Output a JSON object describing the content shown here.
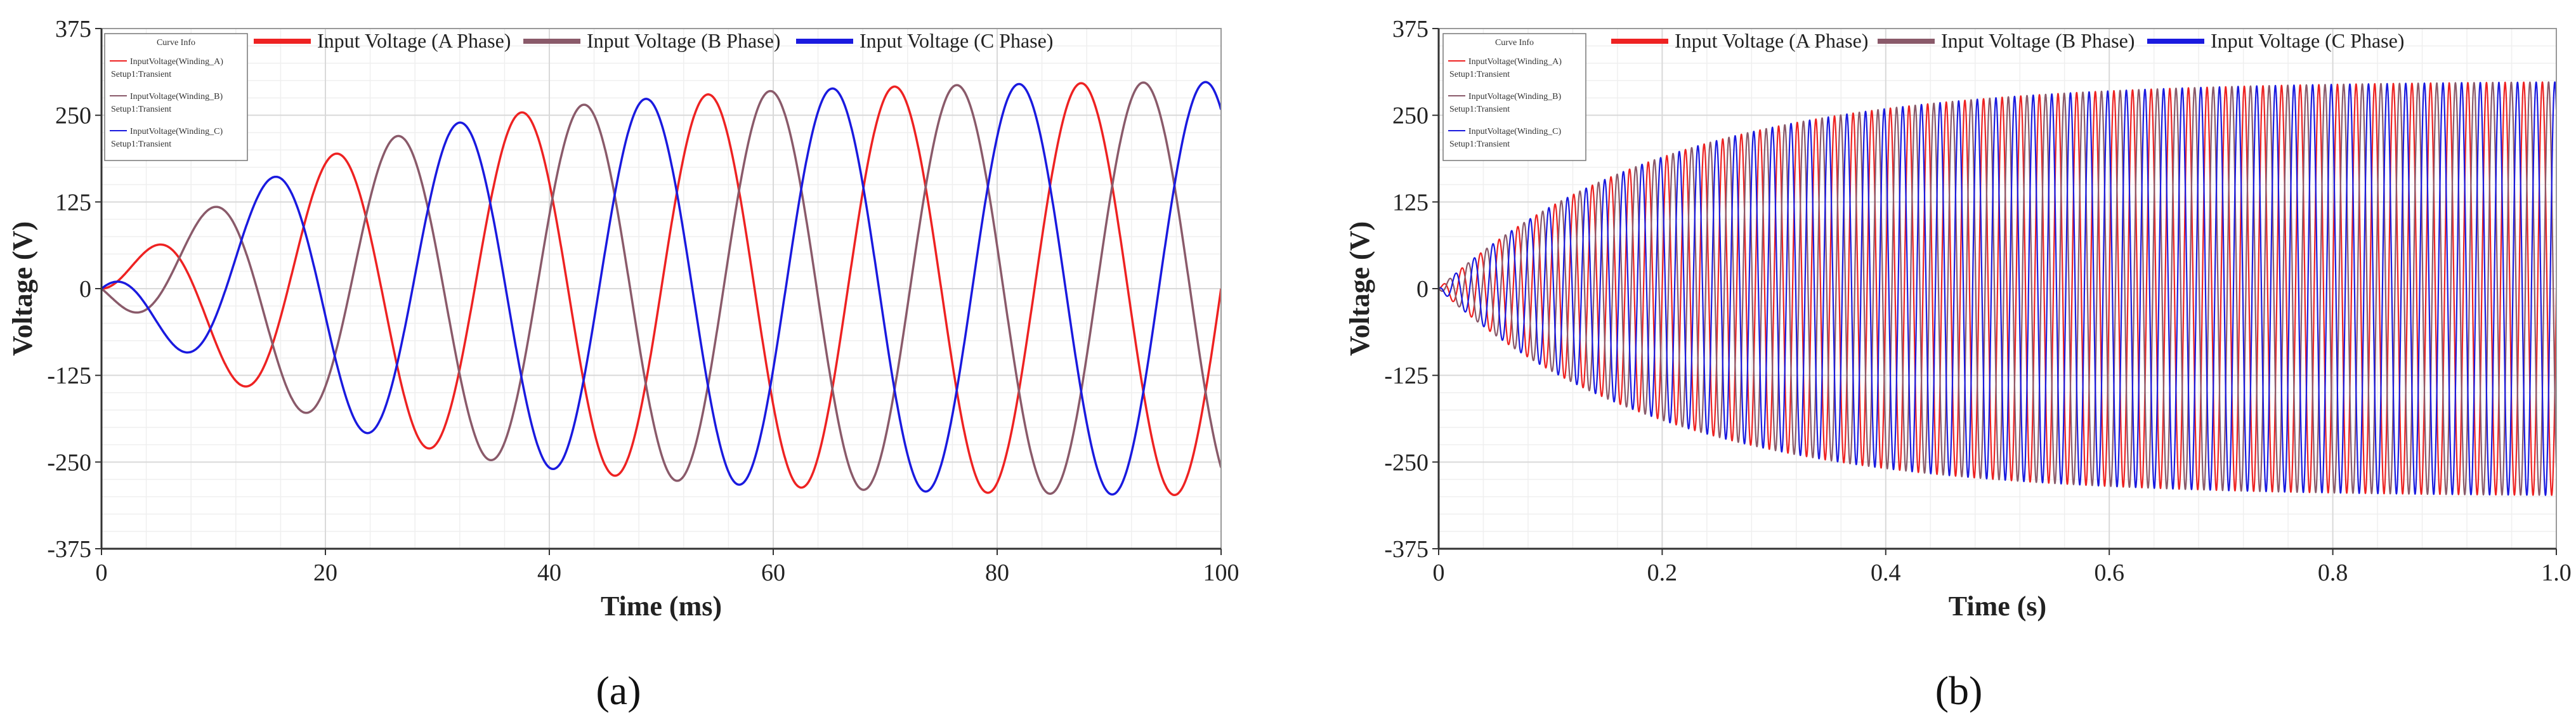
{
  "colors": {
    "phase_a": "#ee2222",
    "phase_b": "#8a5a6a",
    "phase_c": "#1a1adf",
    "grid_major": "#d9d9d9",
    "grid_minor": "#efefef",
    "frame": "#999999"
  },
  "chart_data": [
    {
      "type": "line",
      "panel_label": "(a)",
      "xlabel": "Time (ms)",
      "ylabel": "Voltage (V)",
      "xlim": [
        0,
        100
      ],
      "ylim": [
        -375,
        375
      ],
      "x_ticks": [
        "0",
        "20",
        "40",
        "60",
        "80",
        "100"
      ],
      "y_ticks": [
        "375",
        "250",
        "125",
        "0",
        "-125",
        "-250",
        "-375"
      ],
      "grid": true,
      "legend": [
        "Input Voltage (A Phase)",
        "Input Voltage (B Phase)",
        "Input Voltage (C Phase)"
      ],
      "curve_info": {
        "title": "Curve Info",
        "entries": [
          {
            "line1": "InputVoltage(Winding_A)",
            "line2": "Setup1:Transient"
          },
          {
            "line1": "InputVoltage(Winding_B)",
            "line2": "Setup1:Transient"
          },
          {
            "line1": "InputVoltage(Winding_C)",
            "line2": "Setup1:Transient"
          }
        ]
      },
      "series": [
        {
          "name": "Input Voltage (A Phase)",
          "amplitude_peaks": [
            [
              5,
              60
            ],
            [
              21,
              195
            ],
            [
              38,
              255
            ],
            [
              54,
              280
            ],
            [
              71,
              290
            ],
            [
              88,
              298
            ]
          ]
        },
        {
          "name": "Input Voltage (B Phase)",
          "amplitude_peaks": [
            [
              8,
              -90
            ],
            [
              16,
              160
            ],
            [
              33,
              240
            ],
            [
              49,
              272
            ],
            [
              66,
              288
            ],
            [
              99,
              298
            ]
          ]
        },
        {
          "name": "Input Voltage (C Phase)",
          "amplitude_peaks": [
            [
              10,
              120
            ],
            [
              26,
              220
            ],
            [
              43,
              265
            ],
            [
              60,
              285
            ],
            [
              76,
              292
            ],
            [
              93,
              298
            ]
          ]
        }
      ],
      "frequency_hz": 60,
      "steady_amplitude_v": 300,
      "time_constant_ms": 20
    },
    {
      "type": "line",
      "panel_label": "(b)",
      "xlabel": "Time (s)",
      "ylabel": "Voltage (V)",
      "xlim": [
        0,
        1.0
      ],
      "ylim": [
        -375,
        375
      ],
      "x_ticks": [
        "0",
        "0.2",
        "0.4",
        "0.6",
        "0.8",
        "1.0"
      ],
      "y_ticks": [
        "375",
        "250",
        "125",
        "0",
        "-125",
        "-250",
        "-375"
      ],
      "grid": true,
      "legend": [
        "Input Voltage (A Phase)",
        "Input Voltage (B Phase)",
        "Input Voltage (C Phase)"
      ],
      "curve_info": {
        "title": "Curve Info",
        "entries": [
          {
            "line1": "InputVoltage(Winding_A)",
            "line2": "Setup1:Transient"
          },
          {
            "line1": "InputVoltage(Winding_B)",
            "line2": "Setup1:Transient"
          },
          {
            "line1": "InputVoltage(Winding_C)",
            "line2": "Setup1:Transient"
          }
        ]
      },
      "series": [
        {
          "name": "Input Voltage (A Phase)",
          "envelope": [
            [
              0,
              0
            ],
            [
              0.2,
              215
            ],
            [
              0.4,
              265
            ],
            [
              0.6,
              285
            ],
            [
              0.8,
              295
            ],
            [
              1.0,
              298
            ]
          ]
        },
        {
          "name": "Input Voltage (B Phase)",
          "envelope": [
            [
              0,
              0
            ],
            [
              0.2,
              215
            ],
            [
              0.4,
              265
            ],
            [
              0.6,
              285
            ],
            [
              0.8,
              295
            ],
            [
              1.0,
              298
            ]
          ]
        },
        {
          "name": "Input Voltage (C Phase)",
          "envelope": [
            [
              0,
              0
            ],
            [
              0.2,
              215
            ],
            [
              0.4,
              265
            ],
            [
              0.6,
              285
            ],
            [
              0.8,
              295
            ],
            [
              1.0,
              298
            ]
          ]
        }
      ],
      "frequency_hz": 60,
      "steady_amplitude_v": 300
    }
  ]
}
